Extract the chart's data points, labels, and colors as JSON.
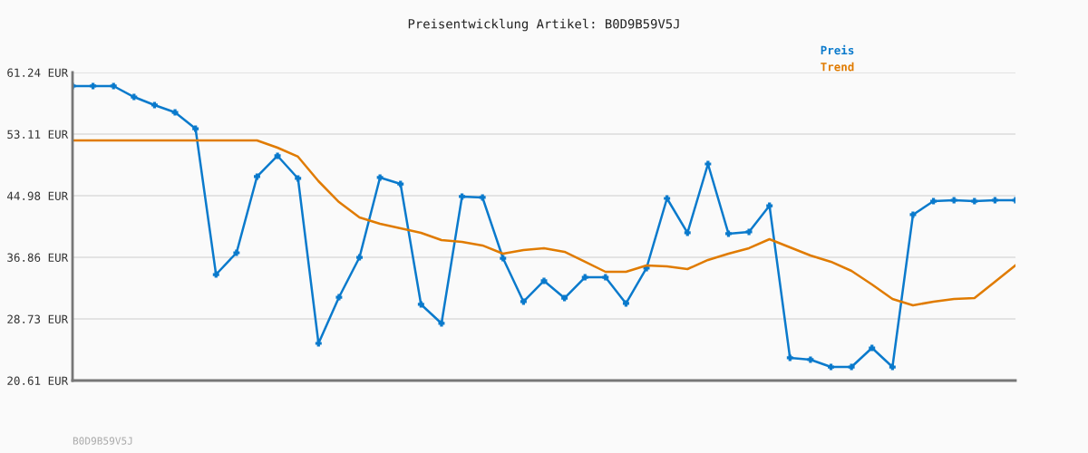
{
  "chart_data": {
    "type": "line",
    "title": "Preisentwicklung Artikel: B0D9B59V5J",
    "categories": [
      null,
      null,
      null,
      null,
      null,
      null,
      null,
      null,
      null,
      null,
      null,
      null,
      null,
      null,
      null,
      null,
      null,
      null,
      null,
      null,
      null,
      null,
      null,
      null,
      null,
      null,
      null,
      null,
      null,
      null,
      null,
      null,
      null,
      null,
      null,
      null,
      null,
      null,
      null,
      null,
      null,
      null,
      null,
      null,
      null,
      null,
      null
    ],
    "series": [
      {
        "name": "Preis",
        "color": "#0a7acc",
        "marker": "cross",
        "values": [
          59.45,
          59.45,
          59.45,
          58.01,
          56.94,
          55.98,
          53.83,
          34.59,
          37.46,
          47.5,
          50.25,
          47.26,
          25.51,
          31.6,
          36.86,
          47.38,
          46.54,
          30.65,
          28.14,
          44.87,
          44.75,
          36.74,
          31.01,
          33.76,
          31.48,
          34.23,
          34.23,
          30.77,
          35.43,
          44.63,
          40.09,
          49.17,
          39.97,
          40.21,
          43.67,
          23.6,
          23.36,
          22.4,
          22.4,
          24.91,
          22.4,
          42.48,
          44.27,
          44.39,
          44.27,
          44.39,
          44.39
        ]
      },
      {
        "name": "Trend",
        "color": "#e07b00",
        "marker": "none",
        "values": [
          52.28,
          52.28,
          52.28,
          52.28,
          52.28,
          52.28,
          52.28,
          52.28,
          52.28,
          52.28,
          51.32,
          50.13,
          46.9,
          44.15,
          42.12,
          41.28,
          40.69,
          40.09,
          39.13,
          38.89,
          38.42,
          37.34,
          37.82,
          38.06,
          37.58,
          36.27,
          34.95,
          34.95,
          35.79,
          35.67,
          35.31,
          36.51,
          37.34,
          38.06,
          39.25,
          38.18,
          37.1,
          36.27,
          35.07,
          33.28,
          31.37,
          30.53,
          31.01,
          31.37,
          31.49,
          33.64,
          35.79
        ]
      }
    ],
    "ylim": [
      20.61,
      61.24
    ],
    "yticks": [
      {
        "value": 20.61,
        "label": "20.61 EUR"
      },
      {
        "value": 28.73,
        "label": "28.73 EUR"
      },
      {
        "value": 36.86,
        "label": "36.86 EUR"
      },
      {
        "value": 44.98,
        "label": "44.98 EUR"
      },
      {
        "value": 53.11,
        "label": "53.11 EUR"
      },
      {
        "value": 61.24,
        "label": "61.24 EUR"
      }
    ],
    "grid": "y",
    "legend": "top right",
    "line_style": "solid",
    "annotations": [
      "B0D9B59V5J"
    ]
  }
}
